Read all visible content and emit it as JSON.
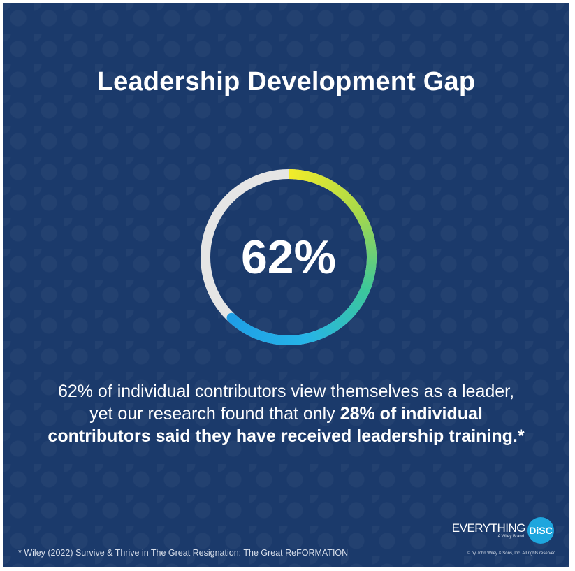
{
  "title": "Leadership Development Gap",
  "stat": {
    "value_label": "62%",
    "percent": 62,
    "ring_colors": [
      "#f2ec2a",
      "#a9d94a",
      "#3cc79a",
      "#26b4e8",
      "#1e9ee6"
    ],
    "track_color": "#e5e5e5"
  },
  "description": {
    "part1": "62% of individual contributors view themselves as a leader, yet our research found that only ",
    "bold": "28% of individual contributors said they have received leadership training.*"
  },
  "logo": {
    "word": "EVERYTHING",
    "circle_text": "DiSC",
    "tagline": "A Wiley Brand",
    "brand_color": "#1ea6de"
  },
  "footnote": "* Wiley (2022) Survive & Thrive in The Great Resignation: The Great ReFORMATION",
  "copyright": "© by John Wiley & Sons, Inc. All rights reserved."
}
